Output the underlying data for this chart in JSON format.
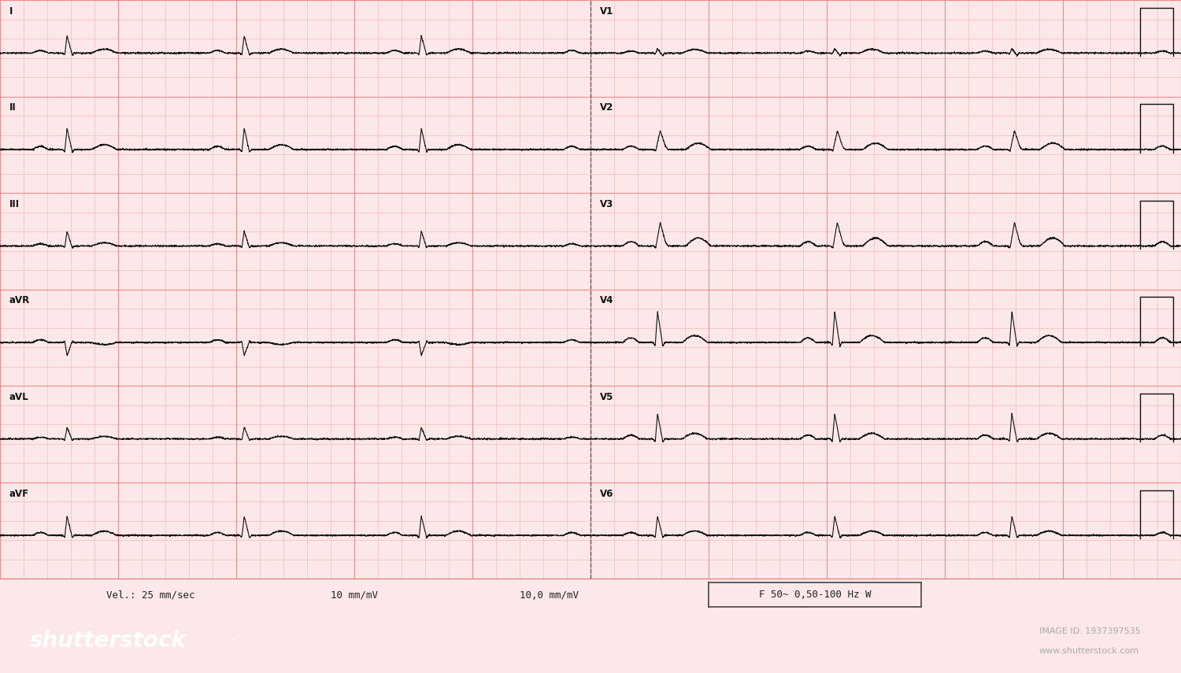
{
  "bg_color": "#fce8e8",
  "grid_minor_color": "#f0a0a0",
  "grid_major_color": "#e87070",
  "ecg_color": "#111111",
  "footer_color": "#35353f",
  "footer_text_color": "#ffffff",
  "leads_left": [
    "I",
    "II",
    "III",
    "aVR",
    "aVL",
    "aVF"
  ],
  "leads_right": [
    "V1",
    "V2",
    "V3",
    "V4",
    "V5",
    "V6"
  ],
  "bottom_text_left": "Vel.: 25 mm/sec",
  "bottom_text_mid1": "10 mm/mV",
  "bottom_text_mid2": "10,0 mm/mV",
  "filter_text": "F 50~ 0,50-100 Hz W",
  "shutterstock_text": "shutterstock",
  "image_id_text": "IMAGE ID: 1937397535",
  "website_text": "www.shutterstock.com",
  "ecg_lw": 0.8
}
